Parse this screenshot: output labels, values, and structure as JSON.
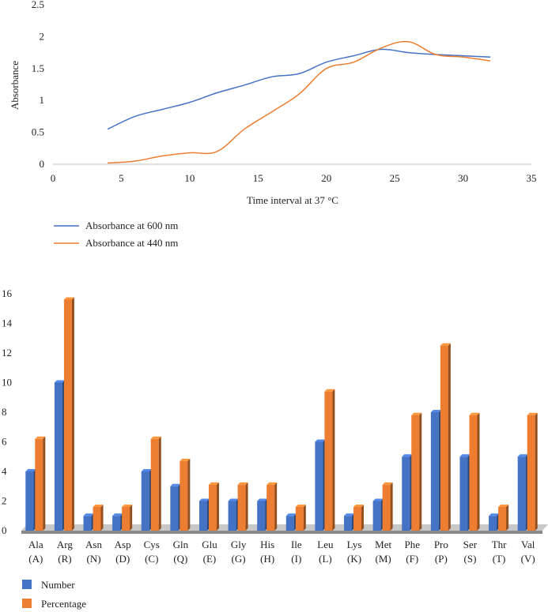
{
  "chart_data": [
    {
      "type": "line",
      "title": "",
      "xlabel": "Time interval at 37 °C",
      "ylabel": "Absorbance",
      "xlim": [
        0,
        35
      ],
      "ylim": [
        0,
        2.5
      ],
      "xticks": [
        "0",
        "5",
        "10",
        "15",
        "20",
        "25",
        "30",
        "35"
      ],
      "yticks": [
        "0",
        "0.5",
        "1",
        "1.5",
        "2",
        "2.5"
      ],
      "grid": false,
      "legend": "bottom-left",
      "series": [
        {
          "name": "Absorbance at 600 nm",
          "color": "#4472C4",
          "x": [
            4,
            6,
            8,
            10,
            12,
            14,
            16,
            18,
            20,
            22,
            24,
            26,
            28,
            30,
            32
          ],
          "y": [
            0.55,
            0.75,
            0.86,
            0.97,
            1.12,
            1.24,
            1.37,
            1.42,
            1.6,
            1.7,
            1.8,
            1.75,
            1.72,
            1.7,
            1.68
          ]
        },
        {
          "name": "Absorbance at 440 nm",
          "color": "#ED7D31",
          "x": [
            4,
            6,
            8,
            10,
            12,
            14,
            16,
            18,
            20,
            22,
            24,
            26,
            28,
            30,
            32
          ],
          "y": [
            0.02,
            0.05,
            0.13,
            0.18,
            0.2,
            0.55,
            0.82,
            1.1,
            1.5,
            1.6,
            1.82,
            1.92,
            1.72,
            1.68,
            1.62
          ]
        }
      ]
    },
    {
      "type": "bar",
      "title": "",
      "xlabel": "",
      "ylabel": "",
      "ylim": [
        0,
        16
      ],
      "yticks": [
        "0",
        "2",
        "4",
        "6",
        "8",
        "10",
        "12",
        "14",
        "16"
      ],
      "grid": false,
      "legend": "bottom-left",
      "categories": [
        "Ala",
        "Arg",
        "Asn",
        "Asp",
        "Cys",
        "Gln",
        "Glu",
        "Gly",
        "His",
        "Ile",
        "Leu",
        "Lys",
        "Met",
        "Phe",
        "Pro",
        "Ser",
        "Thr",
        "Val"
      ],
      "category_codes": [
        "(A)",
        "(R)",
        "(N)",
        "(D)",
        "(C)",
        "(Q)",
        "(E)",
        "(G)",
        "(H)",
        "(I)",
        "(L)",
        "(K)",
        "(M)",
        "(F)",
        "(P)",
        "(S)",
        "(T)",
        "(V)"
      ],
      "series": [
        {
          "name": "Number",
          "color": "#4472C4",
          "values": [
            4,
            10,
            1,
            1,
            4,
            3,
            2,
            2,
            2,
            1,
            6,
            1,
            2,
            5,
            8,
            5,
            1,
            5
          ]
        },
        {
          "name": "Percentage",
          "color": "#ED7D31",
          "values": [
            6.2,
            15.6,
            1.6,
            1.6,
            6.2,
            4.7,
            3.1,
            3.1,
            3.1,
            1.6,
            9.4,
            1.6,
            3.1,
            7.8,
            12.5,
            7.8,
            1.6,
            7.8
          ]
        }
      ]
    }
  ]
}
